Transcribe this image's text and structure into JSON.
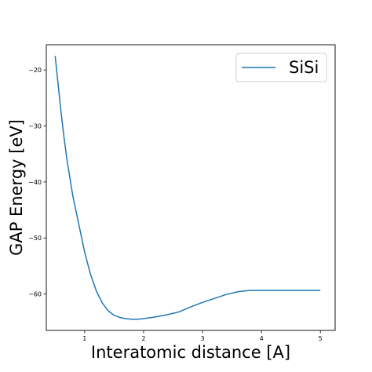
{
  "chart_data": {
    "type": "line",
    "xlabel": "Interatomic distance [A]",
    "ylabel": "GAP Energy [eV]",
    "xlim": [
      0.35,
      5.25
    ],
    "ylim": [
      -66.5,
      -15.5
    ],
    "xticks": [
      1,
      2,
      3,
      4,
      5
    ],
    "yticks": [
      -20,
      -30,
      -40,
      -50,
      -60
    ],
    "grid": false,
    "legend_position": "upper right",
    "series": [
      {
        "name": "SiSi",
        "color": "#1f77b4",
        "x": [
          0.5,
          0.55,
          0.6,
          0.65,
          0.7,
          0.8,
          0.9,
          1.0,
          1.1,
          1.2,
          1.3,
          1.4,
          1.5,
          1.6,
          1.7,
          1.8,
          1.9,
          2.0,
          2.2,
          2.4,
          2.6,
          2.8,
          3.0,
          3.2,
          3.4,
          3.6,
          3.8,
          3.9,
          4.0,
          4.5,
          5.0
        ],
        "y": [
          -17.5,
          -22.5,
          -27.5,
          -32,
          -36,
          -42.5,
          -47.5,
          -52.5,
          -56.5,
          -59.5,
          -61.6,
          -63,
          -63.8,
          -64.2,
          -64.4,
          -64.5,
          -64.5,
          -64.4,
          -64.1,
          -63.7,
          -63.2,
          -62.3,
          -61.5,
          -60.8,
          -60.1,
          -59.6,
          -59.35,
          -59.35,
          -59.35,
          -59.35,
          -59.35
        ]
      }
    ]
  }
}
